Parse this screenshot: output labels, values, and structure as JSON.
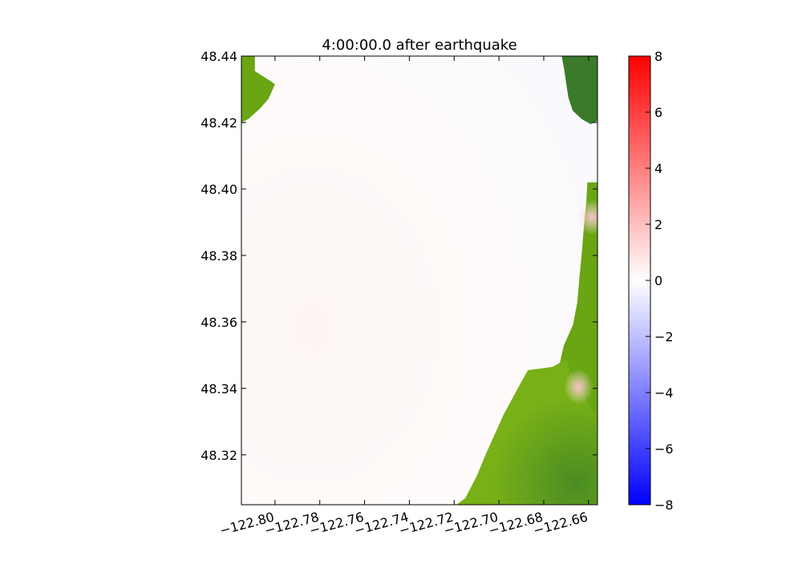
{
  "chart_data": {
    "type": "heatmap",
    "title": "4:00:00.0 after earthquake",
    "xlabel": "",
    "ylabel": "",
    "xlim": [
      -122.815,
      -122.656
    ],
    "ylim": [
      48.305,
      48.44
    ],
    "x_ticks": [
      -122.8,
      -122.78,
      -122.76,
      -122.74,
      -122.72,
      -122.7,
      -122.68,
      -122.66
    ],
    "x_tick_labels": [
      "−122.80",
      "−122.78",
      "−122.76",
      "−122.74",
      "−122.72",
      "−122.70",
      "−122.68",
      "−122.66"
    ],
    "y_ticks": [
      48.32,
      48.34,
      48.36,
      48.38,
      48.4,
      48.42,
      48.44
    ],
    "y_tick_labels": [
      "48.32",
      "48.34",
      "48.36",
      "48.38",
      "48.40",
      "48.42",
      "48.44"
    ],
    "colorbar": {
      "colormap": "bwr",
      "range": [
        -8,
        8
      ],
      "ticks": [
        -8,
        -6,
        -4,
        -2,
        0,
        2,
        4,
        6,
        8
      ],
      "tick_labels": [
        "−8",
        "−6",
        "−4",
        "−2",
        "0",
        "2",
        "4",
        "6",
        "8"
      ],
      "colors": {
        "min": "#0000ff",
        "mid": "#ffffff",
        "max": "#ff0000"
      }
    },
    "land_color": "#6aa514",
    "land_dark_color": "#3a7a2a",
    "water_color": "#fdf8f7",
    "land_regions": [
      {
        "name": "northwest land",
        "polygon": [
          [
            -122.815,
            48.44
          ],
          [
            -122.809,
            48.44
          ],
          [
            -122.809,
            48.4355
          ],
          [
            -122.802,
            48.4325
          ],
          [
            -122.8,
            48.4315
          ],
          [
            -122.803,
            48.427
          ],
          [
            -122.807,
            48.424
          ],
          [
            -122.812,
            48.421
          ],
          [
            -122.815,
            48.42
          ]
        ]
      },
      {
        "name": "northeast land",
        "polygon": [
          [
            -122.672,
            48.44
          ],
          [
            -122.656,
            48.44
          ],
          [
            -122.656,
            48.4205
          ],
          [
            -122.659,
            48.4195
          ],
          [
            -122.663,
            48.421
          ],
          [
            -122.667,
            48.4235
          ],
          [
            -122.669,
            48.4275
          ],
          [
            -122.67,
            48.432
          ],
          [
            -122.671,
            48.4365
          ]
        ]
      },
      {
        "name": "east strip",
        "polygon": [
          [
            -122.6605,
            48.402
          ],
          [
            -122.656,
            48.402
          ],
          [
            -122.656,
            48.332
          ],
          [
            -122.659,
            48.333
          ],
          [
            -122.662,
            48.338
          ],
          [
            -122.666,
            48.342
          ],
          [
            -122.67,
            48.3445
          ],
          [
            -122.673,
            48.347
          ],
          [
            -122.671,
            48.353
          ],
          [
            -122.667,
            48.359
          ],
          [
            -122.665,
            48.366
          ],
          [
            -122.664,
            48.374
          ],
          [
            -122.663,
            48.381
          ],
          [
            -122.662,
            48.389
          ],
          [
            -122.661,
            48.396
          ]
        ]
      },
      {
        "name": "southeast land",
        "polygon": [
          [
            -122.6695,
            48.3485
          ],
          [
            -122.672,
            48.348
          ],
          [
            -122.676,
            48.3465
          ],
          [
            -122.681,
            48.346
          ],
          [
            -122.687,
            48.3455
          ],
          [
            -122.69,
            48.342
          ],
          [
            -122.694,
            48.337
          ],
          [
            -122.698,
            48.332
          ],
          [
            -122.702,
            48.326
          ],
          [
            -122.706,
            48.32
          ],
          [
            -122.71,
            48.3135
          ],
          [
            -122.715,
            48.307
          ],
          [
            -122.719,
            48.305
          ],
          [
            -122.656,
            48.305
          ],
          [
            -122.656,
            48.332
          ],
          [
            -122.659,
            48.333
          ],
          [
            -122.662,
            48.338
          ],
          [
            -122.666,
            48.342
          ],
          [
            -122.6685,
            48.3455
          ]
        ]
      }
    ],
    "positive_patches": [
      {
        "name": "patch near 48.39",
        "center": [
          -122.6585,
          48.3915
        ],
        "value": 1.5
      },
      {
        "name": "patch near 48.34",
        "center": [
          -122.6645,
          48.3405
        ],
        "value": 1.5
      }
    ]
  }
}
